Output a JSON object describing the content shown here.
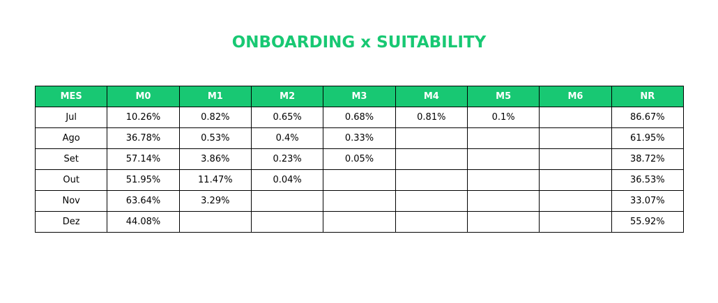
{
  "colors": {
    "accent": "#18c873",
    "header_text": "#ffffff",
    "border": "#000000",
    "background": "#ffffff"
  },
  "chart_data": {
    "type": "table",
    "title": "ONBOARDING x SUITABILITY",
    "columns": [
      "MES",
      "M0",
      "M1",
      "M2",
      "M3",
      "M4",
      "M5",
      "M6",
      "NR"
    ],
    "rows": [
      [
        "Jul",
        "10.26%",
        "0.82%",
        "0.65%",
        "0.68%",
        "0.81%",
        "0.1%",
        "",
        "86.67%"
      ],
      [
        "Ago",
        "36.78%",
        "0.53%",
        "0.4%",
        "0.33%",
        "",
        "",
        "",
        "61.95%"
      ],
      [
        "Set",
        "57.14%",
        "3.86%",
        "0.23%",
        "0.05%",
        "",
        "",
        "",
        "38.72%"
      ],
      [
        "Out",
        "51.95%",
        "11.47%",
        "0.04%",
        "",
        "",
        "",
        "",
        "36.53%"
      ],
      [
        "Nov",
        "63.64%",
        "3.29%",
        "",
        "",
        "",
        "",
        "",
        "33.07%"
      ],
      [
        "Dez",
        "44.08%",
        "",
        "",
        "",
        "",
        "",
        "",
        "55.92%"
      ]
    ]
  }
}
